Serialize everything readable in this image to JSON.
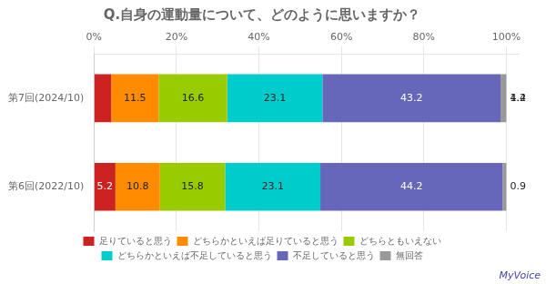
{
  "chart_data": {
    "type": "bar",
    "orientation": "horizontal",
    "stacked": true,
    "title": "Q.自身の運動量について、どのように思いますか？",
    "categories": [
      "第7回(2024/10)",
      "第6回(2022/10)"
    ],
    "series": [
      {
        "name": "足りていると思う",
        "color": "#cc2222",
        "values": [
          4.2,
          5.2
        ]
      },
      {
        "name": "どちらかといえば足りていると思う",
        "color": "#ff8c00",
        "values": [
          11.5,
          10.8
        ]
      },
      {
        "name": "どちらともいえない",
        "color": "#99cc00",
        "values": [
          16.6,
          15.8
        ]
      },
      {
        "name": "どちらかといえば不足していると思う",
        "color": "#00cccc",
        "values": [
          23.1,
          23.1
        ]
      },
      {
        "name": "不足していると思う",
        "color": "#6666bb",
        "values": [
          43.2,
          44.2
        ]
      },
      {
        "name": "無回答",
        "color": "#999999",
        "values": [
          1.4,
          0.9
        ]
      }
    ],
    "xlim": [
      0,
      103
    ],
    "xticks": [
      {
        "value": 0,
        "label": "0%"
      },
      {
        "value": 20,
        "label": "20%"
      },
      {
        "value": 40,
        "label": "40%"
      },
      {
        "value": 60,
        "label": "60%"
      },
      {
        "value": 80,
        "label": "80%"
      },
      {
        "value": 100,
        "label": "100%"
      }
    ],
    "grid": true,
    "legend": "bottom",
    "data_labels": true,
    "annotations": [
      "MyVoice"
    ]
  }
}
